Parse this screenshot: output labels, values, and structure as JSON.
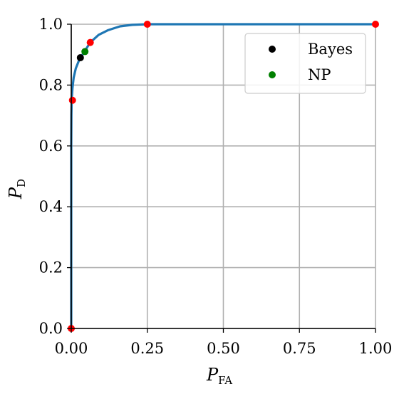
{
  "chart_data": {
    "type": "line",
    "xlabel": "P",
    "xlabel_sub": "FA",
    "ylabel": "P",
    "ylabel_sub": "D",
    "xlim": [
      0,
      1
    ],
    "ylim": [
      0,
      1
    ],
    "x_ticks": [
      "0.00",
      "0.25",
      "0.50",
      "0.75",
      "1.00"
    ],
    "y_ticks": [
      "0.0",
      "0.2",
      "0.4",
      "0.6",
      "0.8",
      "1.0"
    ],
    "grid": true,
    "legend_position": "top-right",
    "curve": {
      "color": "#1f77b4",
      "x": [
        0,
        0,
        0.0005,
        0.001,
        0.002,
        0.004,
        0.008,
        0.015,
        0.025,
        0.04,
        0.0625,
        0.09,
        0.12,
        0.16,
        0.2,
        0.25,
        0.3,
        0.5,
        0.75,
        1.0
      ],
      "y": [
        0,
        0.6,
        0.7,
        0.73,
        0.76,
        0.79,
        0.825,
        0.855,
        0.88,
        0.905,
        0.94,
        0.965,
        0.98,
        0.993,
        0.998,
        1.0,
        1.0,
        1.0,
        1.0,
        1.0
      ]
    },
    "red_points": {
      "color": "#ff0000",
      "points": [
        [
          0,
          0
        ],
        [
          0.004,
          0.75
        ],
        [
          0.0625,
          0.94
        ],
        [
          0.25,
          1.0
        ],
        [
          1.0,
          1.0
        ]
      ]
    },
    "series": [
      {
        "name": "Bayes",
        "color": "#000000",
        "points": [
          [
            0.03,
            0.89
          ]
        ]
      },
      {
        "name": "NP",
        "color": "#008000",
        "points": [
          [
            0.045,
            0.91
          ]
        ]
      }
    ]
  }
}
